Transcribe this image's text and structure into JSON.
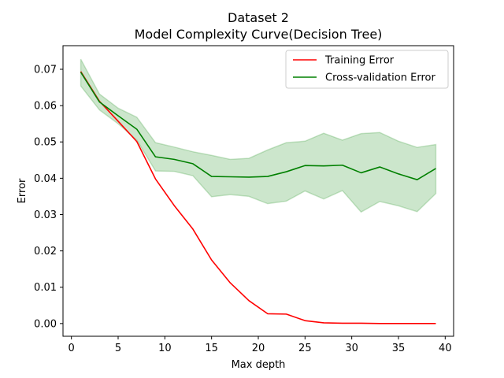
{
  "chart_data": {
    "type": "line",
    "title": "Dataset 2",
    "subtitle": "Model Complexity Curve(Decision Tree)",
    "xlabel": "Max depth",
    "ylabel": "Error",
    "xlim": [
      -0.9,
      40.9
    ],
    "ylim": [
      -0.0035,
      0.0765
    ],
    "xticks": [
      0,
      5,
      10,
      15,
      20,
      25,
      30,
      35,
      40
    ],
    "xtick_labels": [
      "0",
      "5",
      "10",
      "15",
      "20",
      "25",
      "30",
      "35",
      "40"
    ],
    "yticks": [
      0.0,
      0.01,
      0.02,
      0.03,
      0.04,
      0.05,
      0.06,
      0.07
    ],
    "ytick_labels": [
      "0.00",
      "0.01",
      "0.02",
      "0.03",
      "0.04",
      "0.05",
      "0.06",
      "0.07"
    ],
    "grid": false,
    "legend_position": "top-right",
    "x": [
      1,
      3,
      5,
      7,
      9,
      11,
      13,
      15,
      17,
      19,
      21,
      23,
      25,
      27,
      29,
      31,
      33,
      35,
      37,
      39
    ],
    "series": [
      {
        "name": "Training Error",
        "color": "#ff0000",
        "values": [
          0.0694,
          0.0612,
          0.0557,
          0.0501,
          0.0398,
          0.0325,
          0.026,
          0.0175,
          0.0112,
          0.0063,
          0.0027,
          0.0026,
          0.0008,
          0.0002,
          0.0001,
          0.0001,
          0.0,
          0.0,
          0.0,
          0.0
        ]
      },
      {
        "name": "Cross-validation Error",
        "color": "#008000",
        "values": [
          0.0692,
          0.061,
          0.0572,
          0.0535,
          0.0459,
          0.0452,
          0.044,
          0.0405,
          0.0404,
          0.0403,
          0.0405,
          0.0418,
          0.0435,
          0.0434,
          0.0436,
          0.0415,
          0.0431,
          0.0412,
          0.0396,
          0.0427
        ],
        "band_color": "#008000",
        "band_upper": [
          0.0728,
          0.0632,
          0.0593,
          0.0568,
          0.0498,
          0.0486,
          0.0473,
          0.0463,
          0.0452,
          0.0455,
          0.0478,
          0.0498,
          0.0502,
          0.0524,
          0.0505,
          0.0523,
          0.0526,
          0.0502,
          0.0485,
          0.0493
        ],
        "band_lower": [
          0.0654,
          0.0588,
          0.055,
          0.0505,
          0.042,
          0.0419,
          0.0407,
          0.0349,
          0.0355,
          0.035,
          0.033,
          0.0337,
          0.0365,
          0.0343,
          0.0366,
          0.0307,
          0.0336,
          0.0324,
          0.0308,
          0.0358
        ]
      }
    ]
  }
}
